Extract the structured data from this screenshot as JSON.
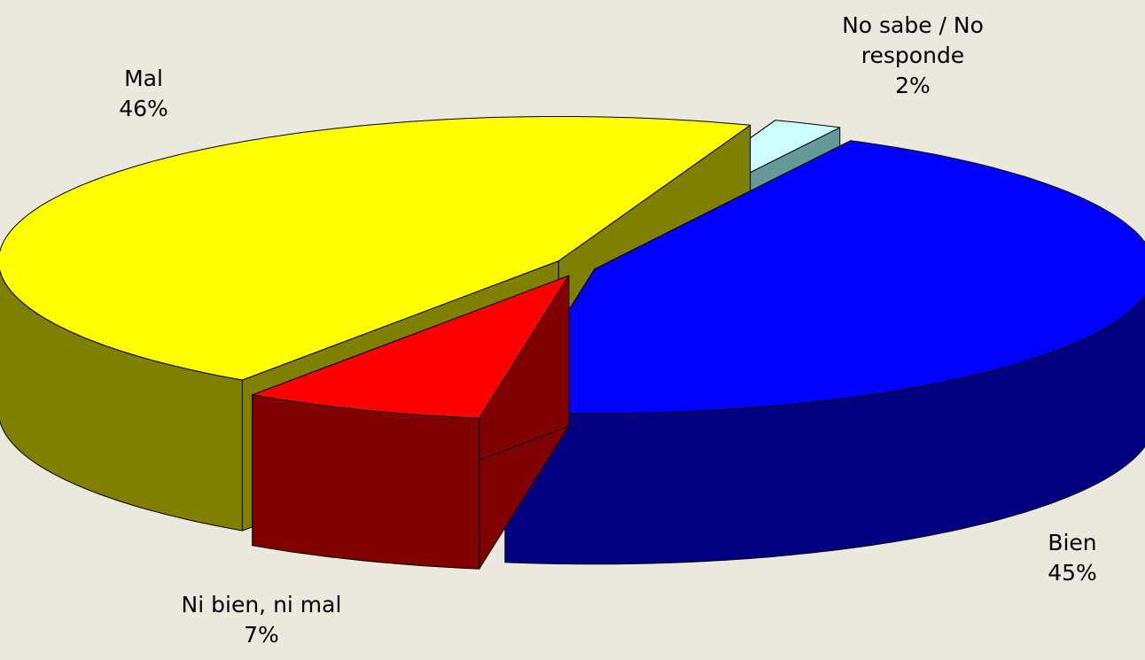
{
  "chart_data": {
    "type": "pie",
    "categories": [
      "No sabe / No responde",
      "Bien",
      "Ni bien, ni mal",
      "Mal"
    ],
    "values": [
      2,
      45,
      7,
      46
    ],
    "value_labels": [
      "2%",
      "45%",
      "7%",
      "46%"
    ],
    "colors": [
      "#ccffff",
      "#0000ff",
      "#ff0000",
      "#ffff00"
    ],
    "side_colors": [
      "#669999",
      "#000080",
      "#800000",
      "#808000"
    ]
  }
}
